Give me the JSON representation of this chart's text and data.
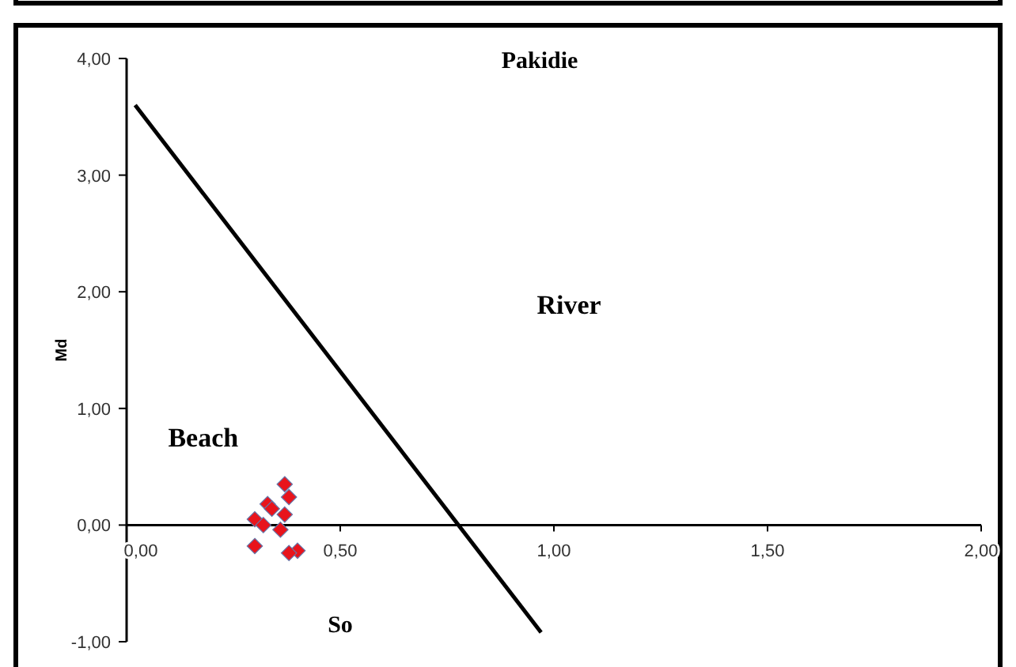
{
  "chart_data": {
    "type": "scatter",
    "title": "Pakidie",
    "xlabel": "So",
    "ylabel": "Md",
    "xlim": [
      0,
      2
    ],
    "ylim": [
      -1,
      4
    ],
    "xticks": [
      {
        "value": 0,
        "label": "0,00"
      },
      {
        "value": 0.5,
        "label": "0,50"
      },
      {
        "value": 1,
        "label": "1,00"
      },
      {
        "value": 1.5,
        "label": "1,50"
      },
      {
        "value": 2,
        "label": "2,00"
      }
    ],
    "yticks": [
      {
        "value": -1,
        "label": "-1,00"
      },
      {
        "value": 0,
        "label": "0,00"
      },
      {
        "value": 1,
        "label": "1,00"
      },
      {
        "value": 2,
        "label": "2,00"
      },
      {
        "value": 3,
        "label": "3,00"
      },
      {
        "value": 4,
        "label": "4,00"
      }
    ],
    "marker": "diamond",
    "grid": false,
    "annotations": [
      "River",
      "Beach"
    ],
    "series": [
      {
        "color": "#e8141c",
        "x": [
          0.37,
          0.38,
          0.33,
          0.34,
          0.37,
          0.3,
          0.32,
          0.36,
          0.3,
          0.4,
          0.38
        ],
        "values": [
          0.35,
          0.24,
          0.18,
          0.14,
          0.09,
          0.05,
          0.0,
          -0.04,
          -0.18,
          -0.22,
          -0.24
        ]
      },
      {
        "type": "line",
        "color": "#000000",
        "x": [
          0.02,
          0.97
        ],
        "values": [
          3.6,
          -0.92
        ],
        "marker": "none",
        "line_style": "solid"
      }
    ]
  }
}
